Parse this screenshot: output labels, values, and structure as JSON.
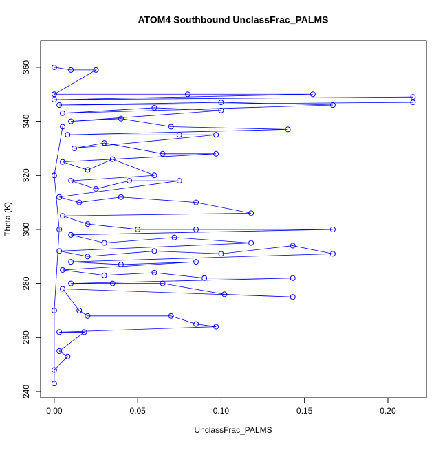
{
  "chart_data": {
    "type": "line",
    "title": "ATOM4 Southbound UnclassFrac_PALMS",
    "x_label": "UnclassFrac_PALMS",
    "y_label": "Theta (K)",
    "xlim": [
      -0.0082,
      0.2231
    ],
    "ylim": [
      237.7,
      369.9
    ],
    "xticks": [
      {
        "value": 0,
        "label": "0.00"
      },
      0.05,
      {
        "value": 0.1,
        "label": "0.10"
      },
      0.15,
      {
        "value": 0.2,
        "label": "0.20"
      }
    ],
    "yticks": [
      240,
      260,
      280,
      300,
      320,
      340,
      360
    ],
    "series": [
      {
        "name": "UnclassFrac_PALMS",
        "color": "#0000ff",
        "x": [
          0,
          0.01,
          0.025,
          0,
          0.08,
          0.155,
          0,
          0.215,
          0.215,
          0.003,
          0.1,
          0.167,
          0.005,
          0.06,
          0.1,
          0.01,
          0.04,
          0.07,
          0.14,
          0.008,
          0.075,
          0.097,
          0.012,
          0.03,
          0.065,
          0.097,
          0.005,
          0.02,
          0.035,
          0.06,
          0.01,
          0.025,
          0.045,
          0.075,
          0.003,
          0.015,
          0.04,
          0.085,
          0.118,
          0.005,
          0.02,
          0.05,
          0.085,
          0.167,
          0.01,
          0.03,
          0.072,
          0.118,
          0.003,
          0.02,
          0.06,
          0.1,
          0.143,
          0.167,
          0.01,
          0.04,
          0.085,
          0.005,
          0.03,
          0.06,
          0.09,
          0.143,
          0.01,
          0.035,
          0.065,
          0.102,
          0.143,
          0.005,
          0.015,
          0.02,
          0.07,
          0.085,
          0.097,
          0.003,
          0.018,
          0.003,
          0.008,
          0,
          0,
          0,
          0.003,
          0,
          0.005
        ],
        "values": [
          360,
          359,
          359,
          350,
          350,
          350,
          348,
          349,
          347,
          346,
          347,
          346,
          343,
          345,
          344,
          340,
          341,
          338,
          337,
          335,
          335,
          335,
          330,
          332,
          328,
          328,
          325,
          322,
          326,
          320,
          318,
          315,
          318,
          318,
          312,
          310,
          312,
          310,
          306,
          305,
          302,
          300,
          300,
          300,
          298,
          295,
          297,
          295,
          292,
          290,
          292,
          291,
          294,
          291,
          288,
          287,
          288,
          285,
          283,
          284,
          282,
          282,
          280,
          280,
          280,
          276,
          275,
          278,
          270,
          268,
          268,
          265,
          264,
          262,
          262,
          255,
          253,
          248,
          243,
          270,
          300,
          320,
          338
        ]
      }
    ]
  }
}
